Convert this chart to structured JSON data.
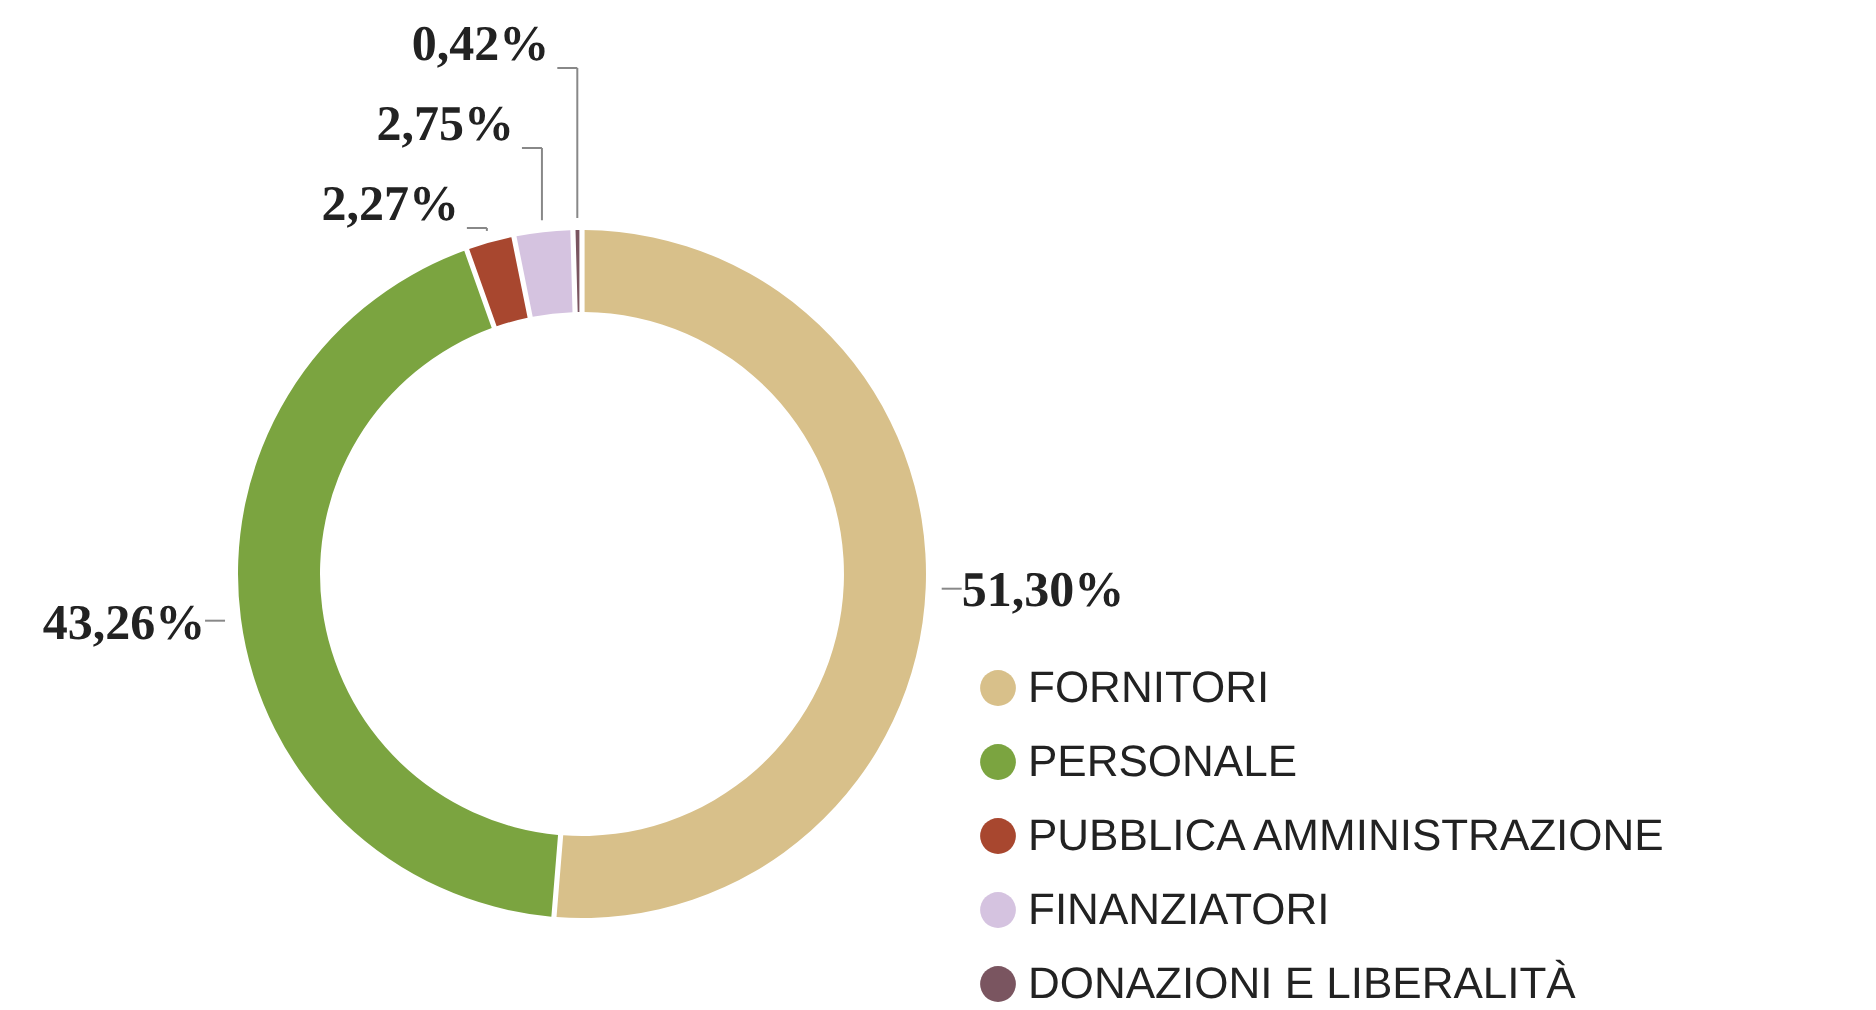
{
  "chart_data": {
    "type": "donut",
    "categories": [
      "FORNITORI",
      "PERSONALE",
      "PUBBLICA AMMINISTRAZIONE",
      "FINANZIATORI",
      "DONAZIONI E LIBERALITÀ"
    ],
    "values": [
      51.3,
      43.26,
      2.27,
      2.75,
      0.42
    ],
    "colors": [
      "#d8c08a",
      "#7ba440",
      "#a8472f",
      "#d5c3e0",
      "#7a5560"
    ],
    "value_labels": [
      "51,30%",
      "43,26%",
      "2,27%",
      "2,75%",
      "0,42%"
    ],
    "legend": "bottom right"
  }
}
